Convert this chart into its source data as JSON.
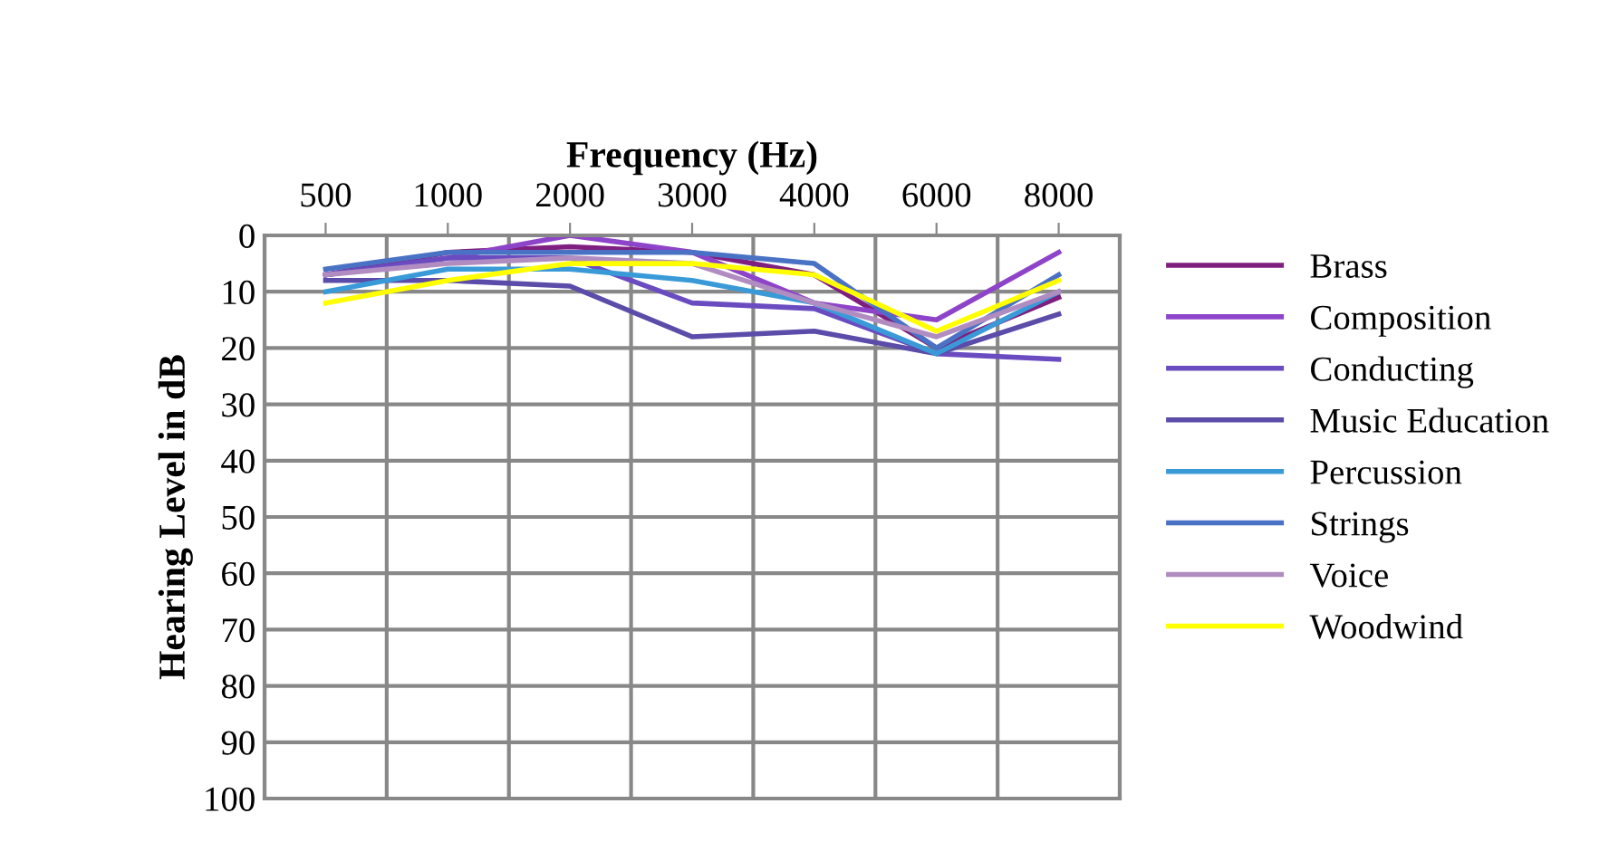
{
  "chart_data": {
    "type": "line",
    "xlabel": "Frequency (Hz)",
    "ylabel": "Hearing Level in dB",
    "categories": [
      "500",
      "1000",
      "2000",
      "3000",
      "4000",
      "6000",
      "8000"
    ],
    "series": [
      {
        "name": "Brass",
        "color": "#7f1f7f",
        "values": [
          7,
          3,
          2,
          3,
          7,
          20,
          11
        ]
      },
      {
        "name": "Composition",
        "color": "#8e44c8",
        "values": [
          7,
          4,
          0,
          3,
          12,
          15,
          3
        ]
      },
      {
        "name": "Conducting",
        "color": "#6a4cc0",
        "values": [
          7,
          4,
          4,
          12,
          13,
          21,
          22
        ]
      },
      {
        "name": "Music Education",
        "color": "#5a4ca8",
        "values": [
          8,
          8,
          9,
          18,
          17,
          21,
          14
        ]
      },
      {
        "name": "Percussion",
        "color": "#3a9ad8",
        "values": [
          10,
          6,
          6,
          8,
          12,
          21,
          10
        ]
      },
      {
        "name": "Strings",
        "color": "#4a72c4",
        "values": [
          6,
          3,
          3,
          3,
          5,
          20,
          7
        ]
      },
      {
        "name": "Voice",
        "color": "#b08cc0",
        "values": [
          7,
          5,
          4,
          5,
          12,
          18,
          10
        ]
      },
      {
        "name": "Woodwind",
        "color": "#ffff00",
        "values": [
          12,
          8,
          5,
          5,
          7,
          17,
          8
        ]
      }
    ],
    "ylim": [
      100,
      0
    ],
    "yticks": [
      0,
      10,
      20,
      30,
      40,
      50,
      60,
      70,
      80,
      90,
      100
    ],
    "grid": true,
    "legend": "right",
    "marker": "none",
    "line_style": "solid"
  }
}
